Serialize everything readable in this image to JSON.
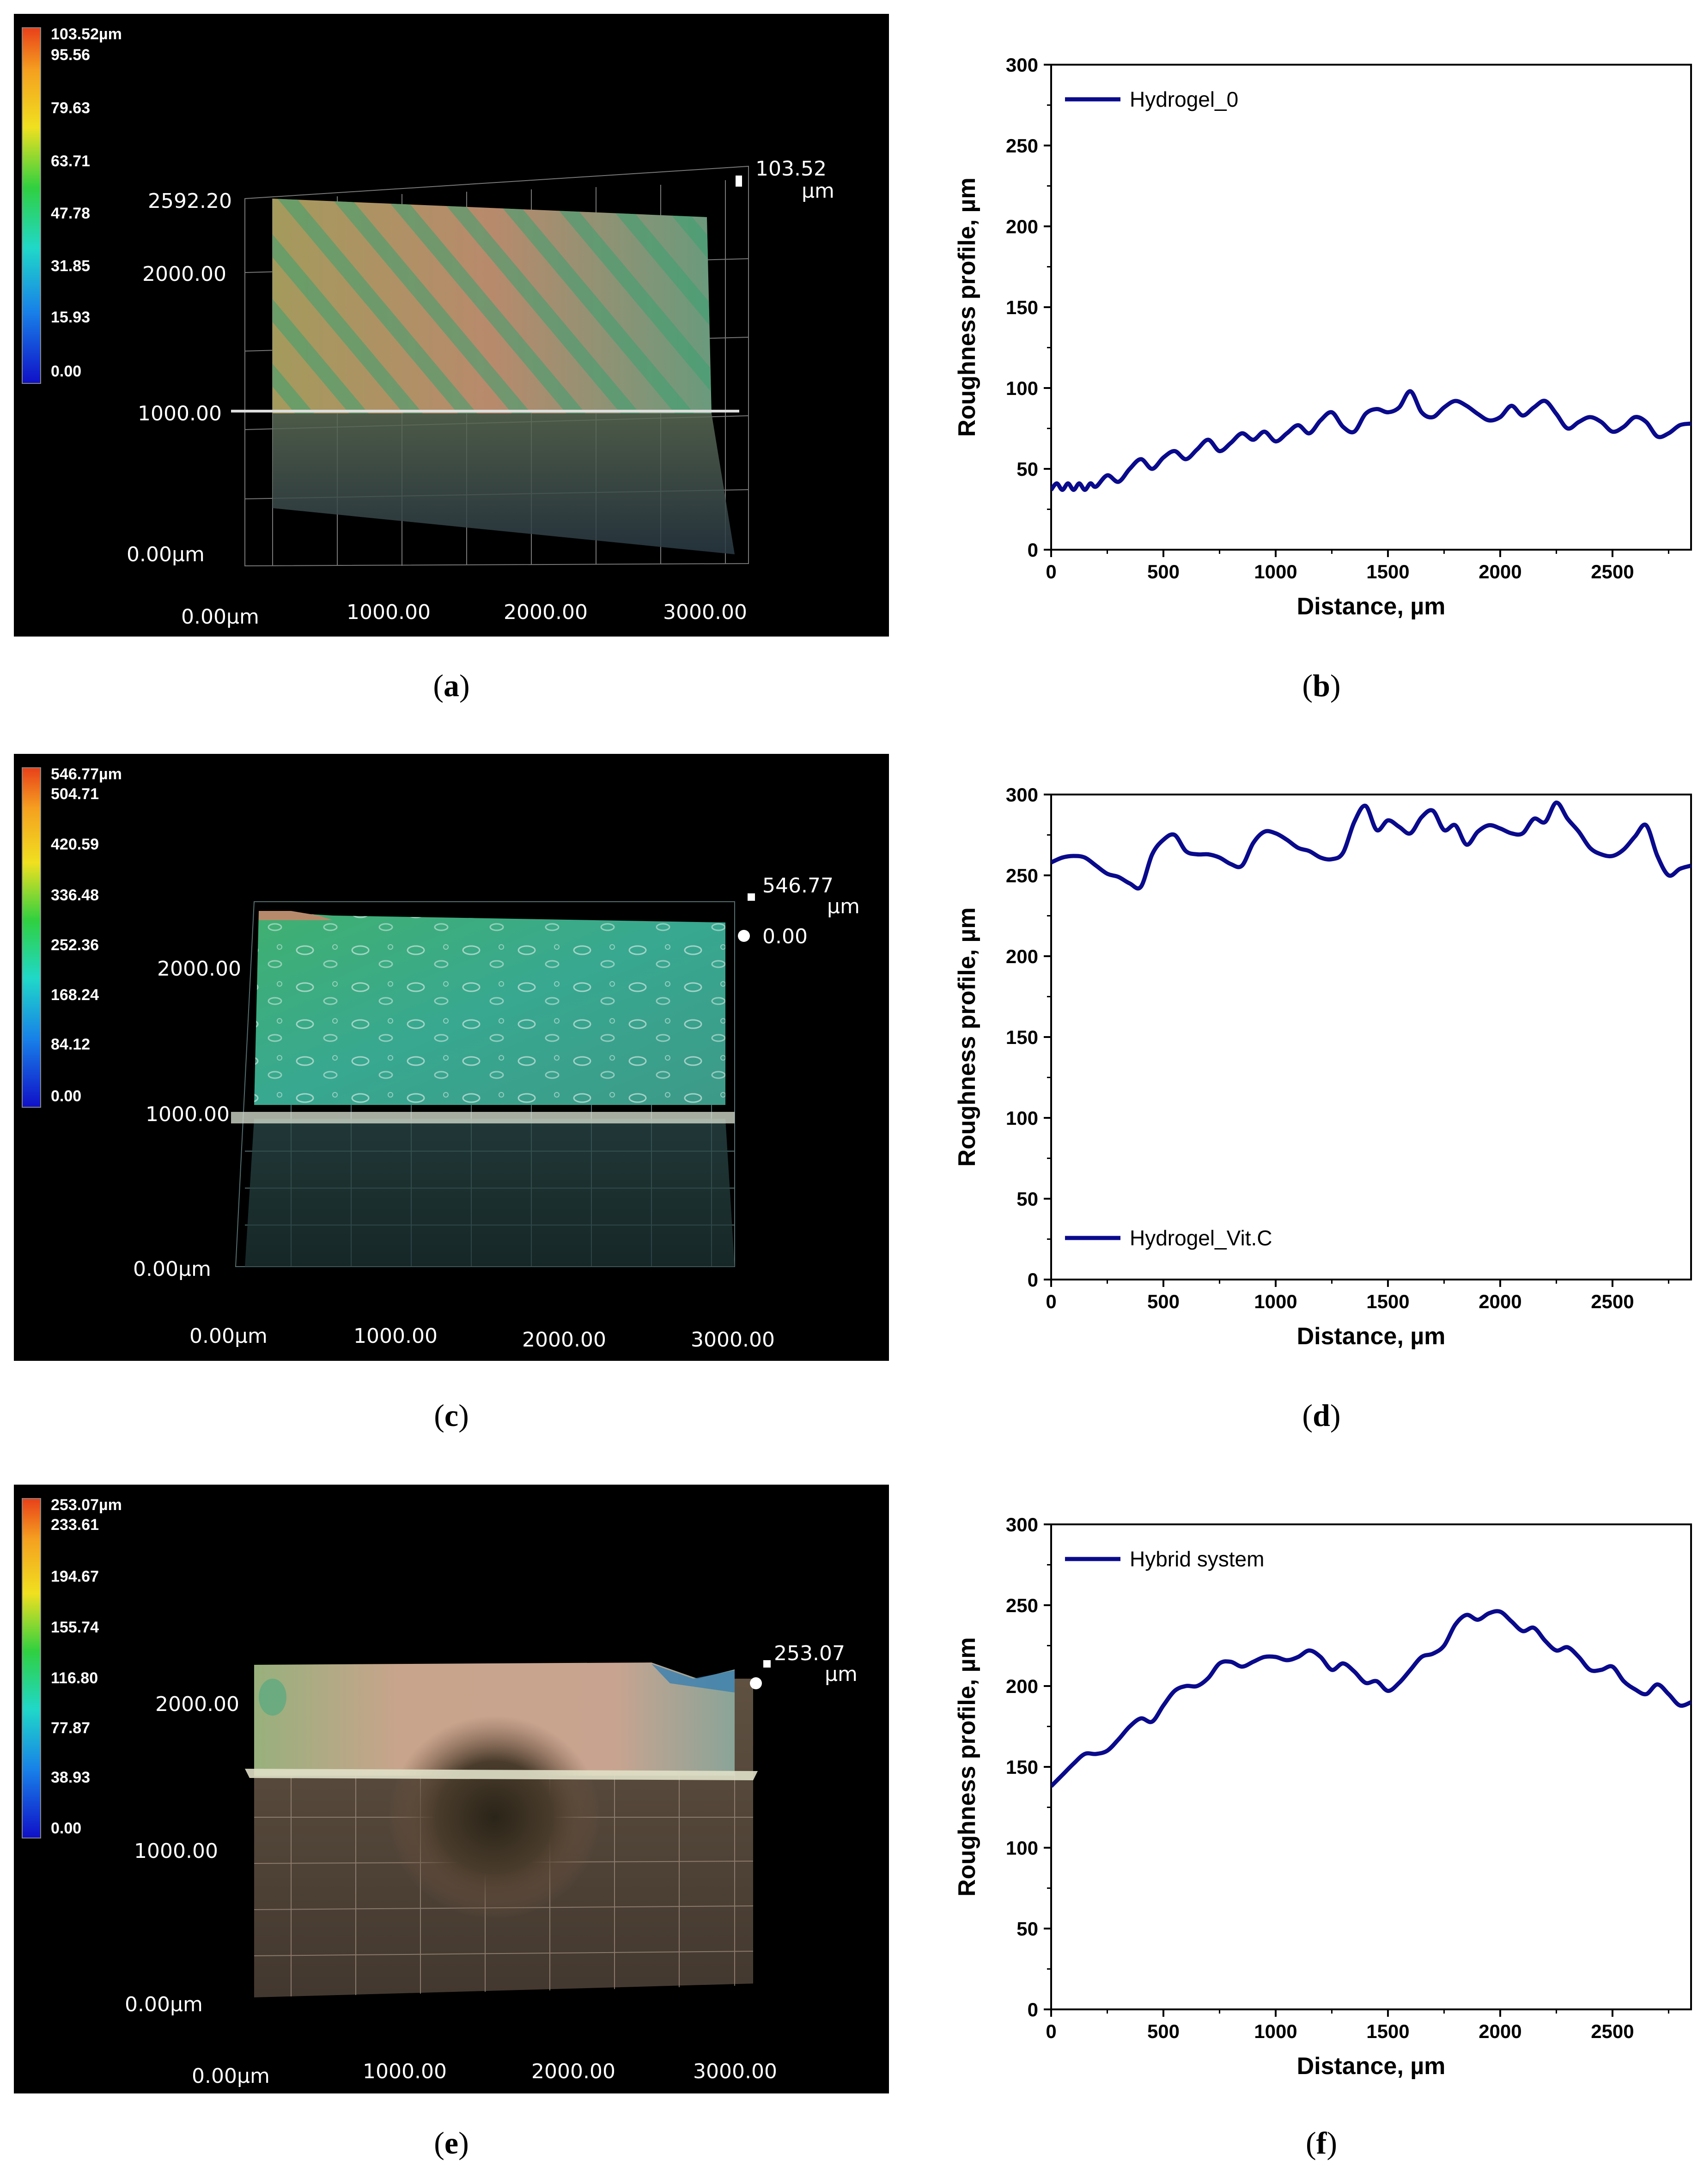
{
  "panels3d": [
    {
      "id": "a",
      "caption": "a",
      "colorbar": [
        "103.52µm",
        "95.56",
        "79.63",
        "63.71",
        "47.78",
        "31.85",
        "15.93",
        "0.00"
      ],
      "zmax_label": "103.52",
      "zmax_unit": "µm",
      "yticks": [
        "2592.20",
        "2000.00",
        "1000.00",
        "0.00µm"
      ],
      "xticks": [
        "0.00µm",
        "1000.00",
        "2000.00",
        "3000.00"
      ]
    },
    {
      "id": "c",
      "caption": "c",
      "colorbar": [
        "546.77µm",
        "504.71",
        "420.59",
        "336.48",
        "252.36",
        "168.24",
        "84.12",
        "0.00"
      ],
      "zmax_label": "546.77",
      "zmax_unit": "µm",
      "zmin_label": "0.00",
      "yticks": [
        "2000.00",
        "1000.00",
        "0.00µm"
      ],
      "xticks": [
        "0.00µm",
        "1000.00",
        "2000.00",
        "3000.00"
      ]
    },
    {
      "id": "e",
      "caption": "e",
      "colorbar": [
        "253.07µm",
        "233.61",
        "194.67",
        "155.74",
        "116.80",
        "77.87",
        "38.93",
        "0.00"
      ],
      "zmax_label": "253.07",
      "zmax_unit": "µm",
      "yticks": [
        "2000.00",
        "1000.00",
        "0.00µm"
      ],
      "xticks": [
        "0.00µm",
        "1000.00",
        "2000.00",
        "3000.00"
      ]
    }
  ],
  "chart_data": [
    {
      "type": "line",
      "caption": "b",
      "legend": "Hydrogel_0",
      "legend_position": "top-left",
      "xlabel": "Distance, µm",
      "ylabel": "Roughness profile, µm",
      "xlim": [
        0,
        2850
      ],
      "ylim": [
        0,
        300
      ],
      "xticks": [
        0,
        500,
        1000,
        1500,
        2000,
        2500
      ],
      "yticks": [
        0,
        50,
        100,
        150,
        200,
        250,
        300
      ],
      "color": "#0a0a8c",
      "x": [
        0,
        25,
        50,
        75,
        100,
        125,
        150,
        175,
        200,
        250,
        300,
        350,
        400,
        450,
        500,
        550,
        600,
        650,
        700,
        750,
        800,
        850,
        900,
        950,
        1000,
        1050,
        1100,
        1150,
        1200,
        1250,
        1300,
        1350,
        1400,
        1450,
        1500,
        1550,
        1600,
        1650,
        1700,
        1750,
        1800,
        1850,
        1900,
        1950,
        2000,
        2050,
        2100,
        2150,
        2200,
        2250,
        2300,
        2350,
        2400,
        2450,
        2500,
        2550,
        2600,
        2650,
        2700,
        2750,
        2800,
        2850
      ],
      "y": [
        37,
        41,
        37,
        41,
        37,
        41,
        37,
        41,
        39,
        46,
        42,
        50,
        56,
        50,
        57,
        61,
        56,
        62,
        68,
        61,
        66,
        72,
        68,
        73,
        67,
        72,
        77,
        72,
        80,
        85,
        76,
        73,
        84,
        87,
        85,
        88,
        98,
        85,
        82,
        88,
        92,
        89,
        84,
        80,
        82,
        89,
        83,
        88,
        92,
        84,
        75,
        79,
        82,
        79,
        73,
        76,
        82,
        79,
        70,
        72,
        77,
        78
      ]
    },
    {
      "type": "line",
      "caption": "d",
      "legend": "Hydrogel_Vit.C",
      "legend_position": "bottom-left",
      "xlabel": "Distance, µm",
      "ylabel": "Roughness profile, µm",
      "xlim": [
        0,
        2850
      ],
      "ylim": [
        0,
        300
      ],
      "xticks": [
        0,
        500,
        1000,
        1500,
        2000,
        2500
      ],
      "yticks": [
        0,
        50,
        100,
        150,
        200,
        250,
        300
      ],
      "color": "#0a0a8c",
      "x": [
        0,
        50,
        100,
        150,
        200,
        250,
        300,
        350,
        400,
        450,
        500,
        550,
        600,
        650,
        700,
        750,
        800,
        850,
        900,
        950,
        1000,
        1050,
        1100,
        1150,
        1200,
        1250,
        1300,
        1350,
        1400,
        1450,
        1500,
        1550,
        1600,
        1650,
        1700,
        1750,
        1800,
        1850,
        1900,
        1950,
        2000,
        2050,
        2100,
        2150,
        2200,
        2250,
        2300,
        2350,
        2400,
        2450,
        2500,
        2550,
        2600,
        2650,
        2700,
        2750,
        2800,
        2850
      ],
      "y": [
        258,
        261,
        262,
        261,
        256,
        251,
        249,
        245,
        243,
        263,
        272,
        275,
        265,
        263,
        263,
        261,
        257,
        256,
        270,
        277,
        276,
        272,
        267,
        265,
        261,
        260,
        264,
        283,
        293,
        278,
        284,
        280,
        276,
        286,
        290,
        278,
        281,
        269,
        277,
        281,
        279,
        276,
        276,
        285,
        283,
        295,
        285,
        277,
        267,
        263,
        262,
        266,
        274,
        281,
        262,
        250,
        254,
        256
      ]
    },
    {
      "type": "line",
      "caption": "f",
      "legend": "Hybrid system",
      "legend_position": "top-left",
      "xlabel": "Distance, µm",
      "ylabel": "Roughness profile, µm",
      "xlim": [
        0,
        2850
      ],
      "ylim": [
        0,
        300
      ],
      "xticks": [
        0,
        500,
        1000,
        1500,
        2000,
        2500
      ],
      "yticks": [
        0,
        50,
        100,
        150,
        200,
        250,
        300
      ],
      "color": "#0a0a8c",
      "x": [
        0,
        50,
        100,
        150,
        200,
        250,
        300,
        350,
        400,
        450,
        500,
        550,
        600,
        650,
        700,
        750,
        800,
        850,
        900,
        950,
        1000,
        1050,
        1100,
        1150,
        1200,
        1250,
        1300,
        1350,
        1400,
        1450,
        1500,
        1550,
        1600,
        1650,
        1700,
        1750,
        1800,
        1850,
        1900,
        1950,
        2000,
        2050,
        2100,
        2150,
        2200,
        2250,
        2300,
        2350,
        2400,
        2450,
        2500,
        2550,
        2600,
        2650,
        2700,
        2750,
        2800,
        2850
      ],
      "y": [
        138,
        145,
        152,
        158,
        158,
        160,
        167,
        175,
        180,
        178,
        188,
        197,
        200,
        200,
        205,
        214,
        215,
        212,
        215,
        218,
        218,
        216,
        218,
        222,
        218,
        210,
        214,
        209,
        202,
        203,
        197,
        202,
        210,
        218,
        220,
        225,
        238,
        244,
        241,
        245,
        246,
        240,
        234,
        236,
        228,
        222,
        224,
        218,
        210,
        210,
        212,
        203,
        198,
        195,
        201,
        195,
        188,
        190
      ]
    }
  ]
}
